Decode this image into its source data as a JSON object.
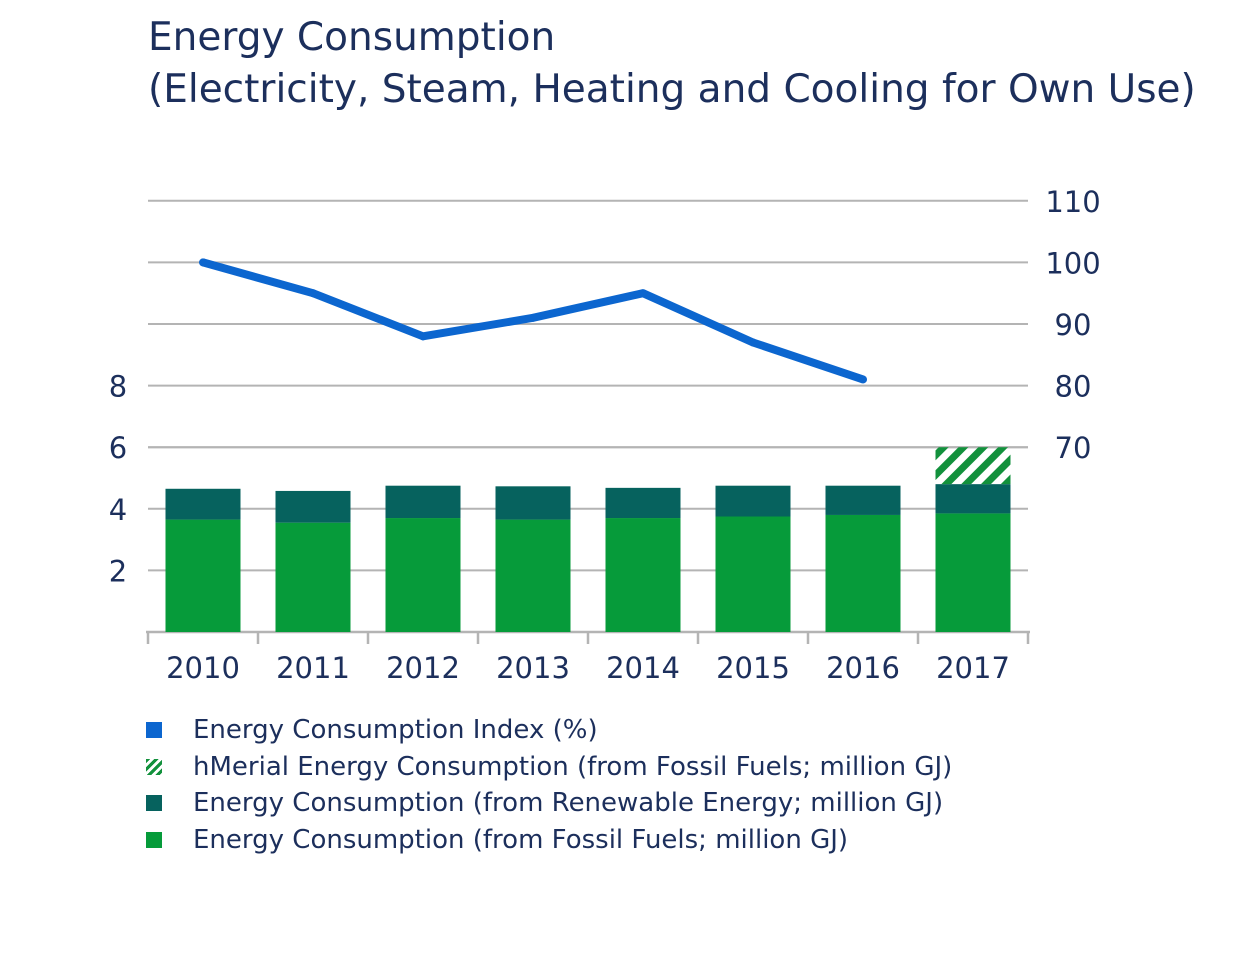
{
  "title": {
    "line1": "Energy Consumption",
    "line2": "(Electricity, Steam, Heating and Cooling for Own Use)"
  },
  "colors": {
    "fossil": "#069b3a",
    "renewable": "#06625e",
    "hatch": "#12913c",
    "index_line": "#0c66cf",
    "grid": "#b4b4b4",
    "text": "#1c2f5c"
  },
  "legend": [
    {
      "label": "Energy Consumption Index (%)",
      "swatch": "index",
      "icon": "blue-square-icon"
    },
    {
      "label": "hMerial Energy Consumption (from Fossil Fuels; million GJ)",
      "swatch": "hatch",
      "icon": "hatched-square-icon"
    },
    {
      "label": "Energy Consumption (from Renewable Energy; million GJ)",
      "swatch": "renewable",
      "icon": "dark-teal-square-icon"
    },
    {
      "label": "Energy Consumption (from Fossil Fuels; million GJ)",
      "swatch": "fossil",
      "icon": "green-square-icon"
    }
  ],
  "chart_data": {
    "type": "bar",
    "title": "Energy Consumption (Electricity, Steam, Heating and Cooling for Own Use)",
    "categories": [
      "2010",
      "2011",
      "2012",
      "2013",
      "2014",
      "2015",
      "2016",
      "2017"
    ],
    "series": [
      {
        "name": "Energy Consumption (from Fossil Fuels; million GJ)",
        "values": [
          3.65,
          3.55,
          3.7,
          3.65,
          3.7,
          3.75,
          3.8,
          3.85
        ]
      },
      {
        "name": "Energy Consumption (from Renewable Energy; million GJ)",
        "values": [
          1.0,
          1.03,
          1.05,
          1.08,
          0.98,
          1.0,
          0.95,
          0.95
        ]
      },
      {
        "name": "hMerial Energy Consumption (from Fossil Fuels; million GJ)",
        "values": [
          null,
          null,
          null,
          null,
          null,
          null,
          null,
          1.2
        ]
      },
      {
        "name": "Energy Consumption Index (%)",
        "type": "line",
        "axis": "right",
        "values": [
          100,
          95,
          88,
          91,
          95,
          87,
          81,
          null
        ]
      }
    ],
    "left_axis": {
      "ticks": [
        2,
        4,
        6,
        8
      ],
      "range": [
        0,
        14
      ]
    },
    "right_axis": {
      "ticks": [
        70,
        80,
        90,
        100,
        110
      ],
      "range": [
        40,
        110
      ]
    },
    "xlabel": "",
    "ylabel": "",
    "legend_position": "bottom-left",
    "grid": true
  }
}
